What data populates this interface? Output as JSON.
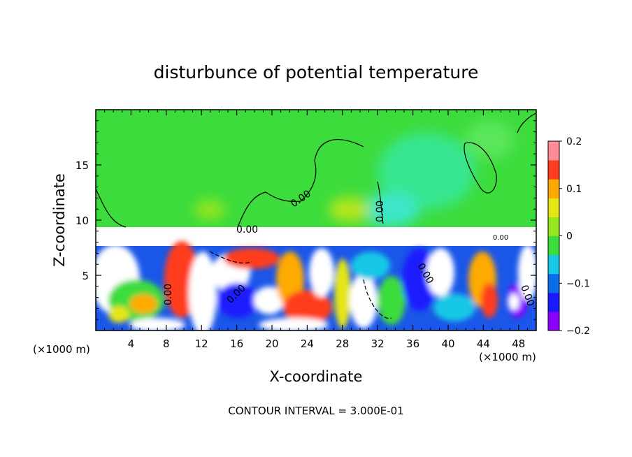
{
  "chart_data": {
    "type": "heatmap",
    "title": "disturbunce of potential temperature",
    "xlabel": "X-coordinate",
    "ylabel": "Z-coordinate",
    "x_unit_left": "(×1000 m)",
    "x_unit_right": "(×1000 m)",
    "x_range": [
      0,
      50
    ],
    "y_range": [
      0,
      20
    ],
    "x_ticks": [
      4,
      8,
      12,
      16,
      20,
      24,
      28,
      32,
      36,
      40,
      44,
      48
    ],
    "x_tick_labels": [
      "4",
      "8",
      "12",
      "16",
      "20",
      "24",
      "28",
      "32",
      "36",
      "40",
      "44",
      "48"
    ],
    "y_ticks": [
      5,
      10,
      15
    ],
    "y_tick_labels": [
      "5",
      "10",
      "15"
    ],
    "colorbar": {
      "min": -0.2,
      "max": 0.2,
      "tick_values": [
        0.2,
        0.1,
        0,
        -0.1,
        -0.2
      ],
      "tick_labels": [
        "0.2",
        "0.1",
        "0",
        "−0.1",
        "−0.2"
      ],
      "colors": [
        "#8b00ff",
        "#1a1aff",
        "#0a6ee8",
        "#14c8e6",
        "#3cdc3c",
        "#96e61e",
        "#e6e614",
        "#ffaa00",
        "#ff3c1e",
        "#ff8c96"
      ]
    },
    "contour_labels": [
      "0.00",
      "0.00",
      "0.00",
      "0.00",
      "0.00",
      "0.00",
      "0.00",
      "0.00"
    ],
    "footer": "CONTOUR INTERVAL = 3.000E-01"
  }
}
